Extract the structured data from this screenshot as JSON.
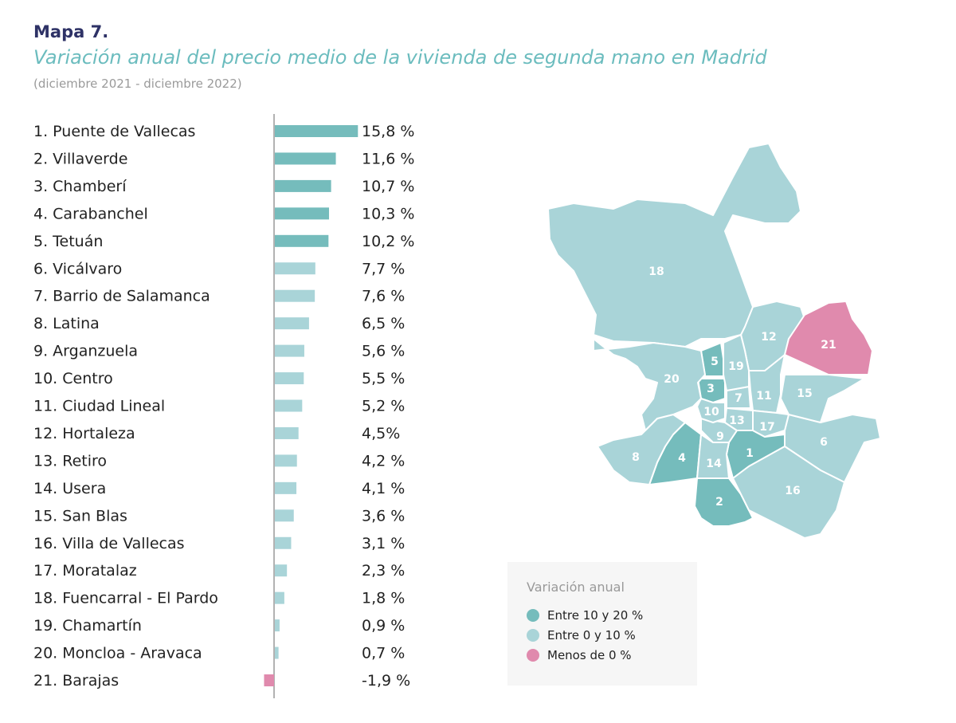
{
  "header": {
    "label": "Mapa 7.",
    "title": "Variación anual del precio medio de la vivienda de segunda mano en Madrid",
    "subtitle": "(diciembre 2021 - diciembre 2022)"
  },
  "colors": {
    "high": "#75bcbc",
    "mid": "#a9d4d8",
    "neg": "#e08aad"
  },
  "chart_data": {
    "type": "bar",
    "orientation": "horizontal",
    "unit": "%",
    "categories": [
      "1. Puente de Vallecas",
      "2. Villaverde",
      "3. Chamberí",
      "4. Carabanchel",
      "5. Tetuán",
      "6. Vicálvaro",
      "7. Barrio de Salamanca",
      "8. Latina",
      "9. Arganzuela",
      "10. Centro",
      "11. Ciudad Lineal",
      "12. Hortaleza",
      "13. Retiro",
      "14. Usera",
      "15. San Blas",
      "16. Villa de Vallecas",
      "17. Moratalaz",
      "18. Fuencarral - El Pardo",
      "19. Chamartín",
      "20. Moncloa - Aravaca",
      "21. Barajas"
    ],
    "values": [
      15.8,
      11.6,
      10.7,
      10.3,
      10.2,
      7.7,
      7.6,
      6.5,
      5.6,
      5.5,
      5.2,
      4.5,
      4.2,
      4.1,
      3.6,
      3.1,
      2.3,
      1.8,
      0.9,
      0.7,
      -1.9
    ],
    "labels": [
      "15,8 %",
      "11,6 %",
      "10,7 %",
      "10,3 %",
      "10,2 %",
      "7,7 %",
      "7,6 %",
      "6,5 %",
      "5,6 %",
      "5,5 %",
      "5,2 %",
      "4,5%",
      "4,2 %",
      "4,1 %",
      "3,6 %",
      "3,1 %",
      "2,3 %",
      "1,8 %",
      "0,9 %",
      "0,7 %",
      "-1,9 %"
    ]
  },
  "legend": {
    "title": "Variación anual",
    "items": [
      {
        "label": "Entre 10 y 20 %",
        "color": "#75bcbc"
      },
      {
        "label": "Entre 0 y 10 %",
        "color": "#a9d4d8"
      },
      {
        "label": "Menos de 0 %",
        "color": "#e08aad"
      }
    ]
  },
  "map_labels": [
    "1",
    "2",
    "3",
    "4",
    "5",
    "6",
    "7",
    "8",
    "9",
    "10",
    "11",
    "12",
    "13",
    "14",
    "15",
    "16",
    "17",
    "18",
    "19",
    "20",
    "21"
  ]
}
